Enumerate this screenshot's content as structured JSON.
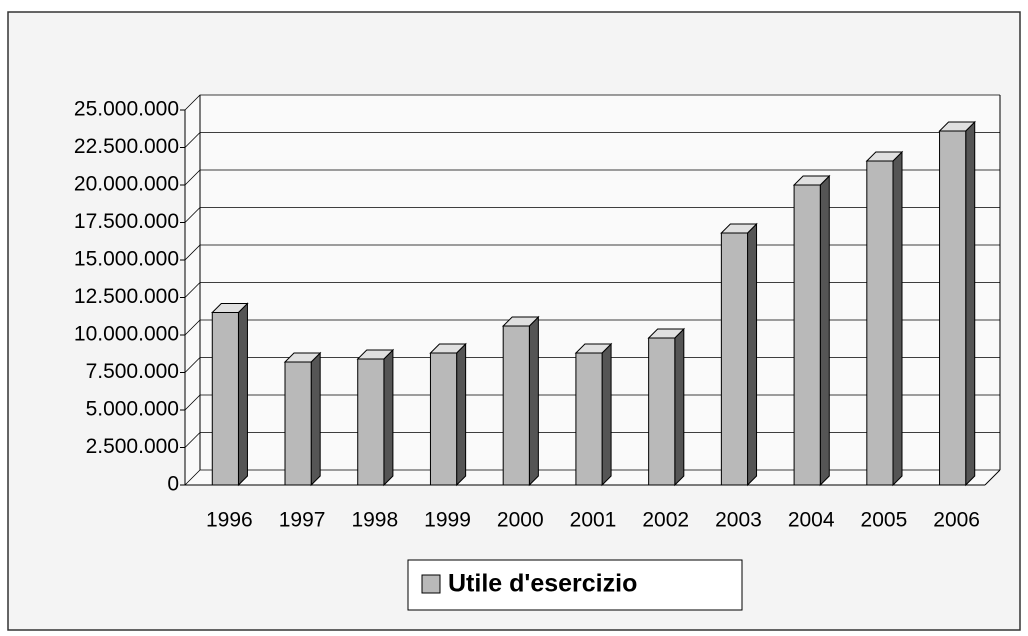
{
  "chart_data": {
    "type": "bar3d",
    "categories": [
      "1996",
      "1997",
      "1998",
      "1999",
      "2000",
      "2001",
      "2002",
      "2003",
      "2004",
      "2005",
      "2006"
    ],
    "series": [
      {
        "name": "Utile d'esercizio",
        "color": "#b9b9b9",
        "values": [
          11500000,
          8200000,
          8400000,
          8800000,
          10600000,
          8800000,
          9800000,
          16800000,
          20000000,
          21600000,
          23600000
        ]
      }
    ],
    "ylim": [
      0,
      25000000
    ],
    "yticks": [
      0,
      {
        "value": 2500000,
        "label": "2.500.000"
      },
      {
        "value": 5000000,
        "label": "5.000.000"
      },
      {
        "value": 7500000,
        "label": "7.500.000"
      },
      {
        "value": 10000000,
        "label": "10.000.000"
      },
      {
        "value": 12500000,
        "label": "12.500.000"
      },
      {
        "value": 15000000,
        "label": "15.000.000"
      },
      {
        "value": 17500000,
        "label": "17.500.000"
      },
      {
        "value": 20000000,
        "label": "20.000.000"
      },
      {
        "value": 22500000,
        "label": "22.500.000"
      },
      {
        "value": 25000000,
        "label": "25.000.000"
      }
    ],
    "grid": true,
    "legend": "bottom"
  }
}
